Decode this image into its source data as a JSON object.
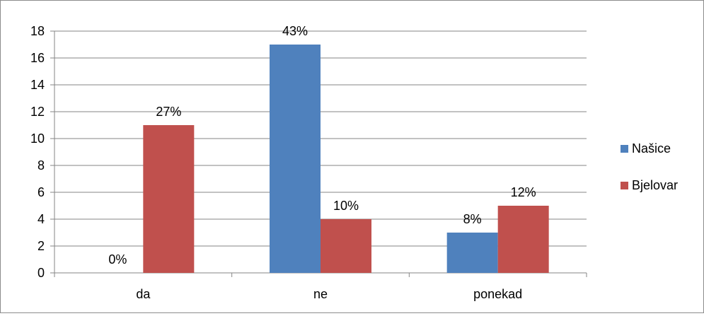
{
  "chart_data": {
    "type": "bar",
    "categories": [
      "da",
      "ne",
      "ponekad"
    ],
    "series": [
      {
        "name": "Našice",
        "color": "#4f81bd",
        "values": [
          0,
          17,
          3
        ],
        "labels": [
          "0%",
          "43%",
          "8%"
        ]
      },
      {
        "name": "Bjelovar",
        "color": "#c0504d",
        "values": [
          11,
          4,
          5
        ],
        "labels": [
          "27%",
          "10%",
          "12%"
        ]
      }
    ],
    "title": "",
    "xlabel": "",
    "ylabel": "",
    "ylim": [
      0,
      18
    ],
    "yticks": [
      0,
      2,
      4,
      6,
      8,
      10,
      12,
      14,
      16,
      18
    ],
    "grid": true,
    "legend": "right"
  }
}
